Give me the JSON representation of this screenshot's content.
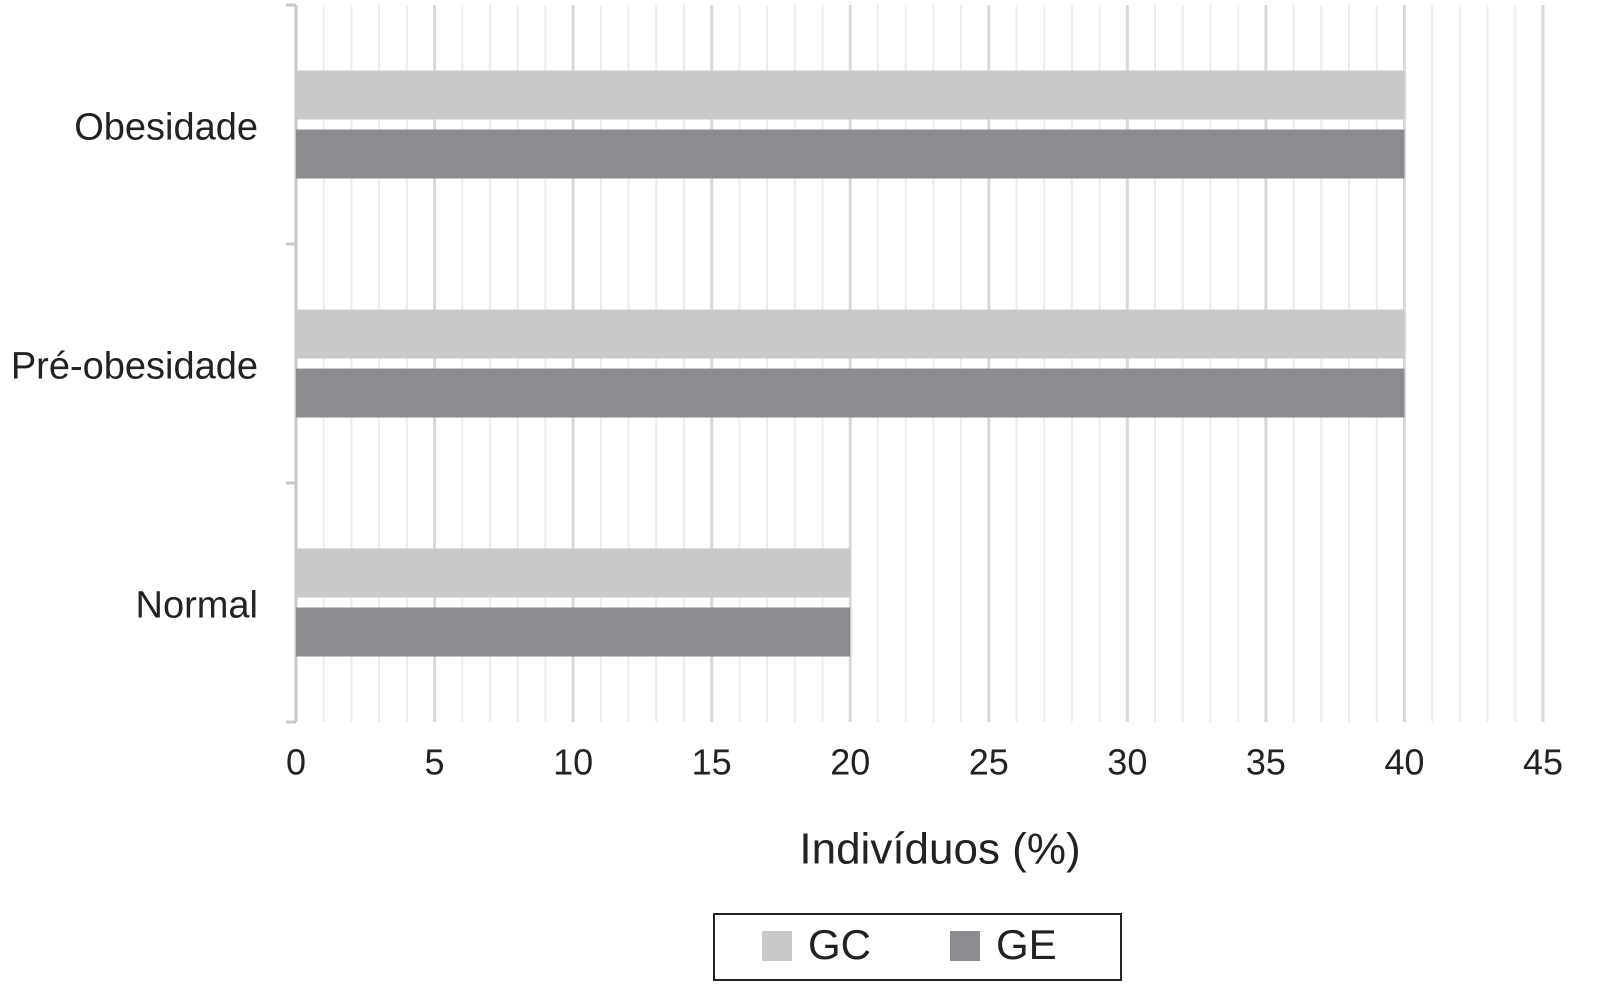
{
  "chart_data": {
    "type": "hbar",
    "x_label": "Indivíduos (%)",
    "categories": [
      "Normal",
      "Pré-obesidade",
      "Obesidade"
    ],
    "series": [
      {
        "name": "GC",
        "color": "#c8c9cb",
        "values": [
          20,
          40,
          40
        ]
      },
      {
        "name": "GE",
        "color": "#8b8c8f",
        "values": [
          20,
          40,
          40
        ]
      }
    ],
    "xlim": [
      0,
      45
    ],
    "xticks": [
      0,
      5,
      10,
      15,
      20,
      25,
      30,
      35,
      40,
      45
    ],
    "grid": true,
    "minor_grid": true,
    "legend": "bottom"
  }
}
